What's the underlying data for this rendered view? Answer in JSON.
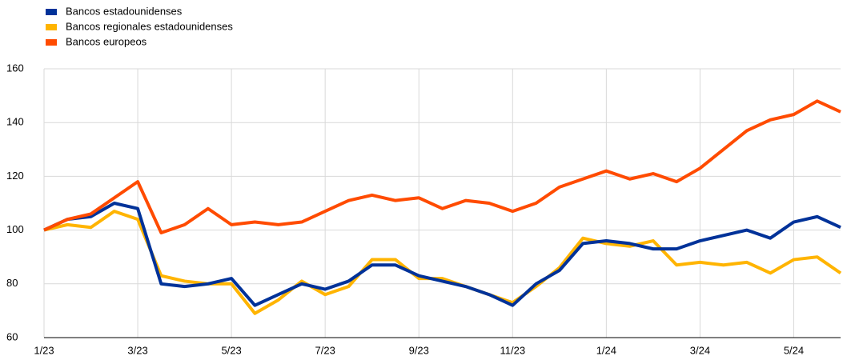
{
  "chart_data": {
    "type": "line",
    "x": [
      0,
      0.5,
      1,
      1.5,
      2,
      2.5,
      3,
      3.5,
      4,
      4.5,
      5,
      5.5,
      6,
      6.5,
      7,
      7.5,
      8,
      8.5,
      9,
      9.5,
      10,
      10.5,
      11,
      11.5,
      12,
      12.5,
      13,
      13.5,
      14,
      14.5,
      15,
      15.5,
      16,
      16.5,
      17
    ],
    "series": [
      {
        "name": "Bancos estadounidenses",
        "color": "#003299",
        "values": [
          100,
          104,
          105,
          110,
          108,
          80,
          79,
          80,
          82,
          72,
          76,
          80,
          78,
          81,
          87,
          87,
          83,
          81,
          79,
          76,
          72,
          80,
          85,
          95,
          96,
          95,
          93,
          93,
          96,
          98,
          100,
          97,
          103,
          105,
          101
        ]
      },
      {
        "name": "Bancos regionales estadounidenses",
        "color": "#ffb400",
        "values": [
          100,
          102,
          101,
          107,
          104,
          83,
          81,
          80,
          80,
          69,
          74,
          81,
          76,
          79,
          89,
          89,
          82,
          82,
          79,
          76,
          73,
          79,
          86,
          97,
          95,
          94,
          96,
          87,
          88,
          87,
          88,
          84,
          89,
          90,
          84
        ]
      },
      {
        "name": "Bancos europeos",
        "color": "#ff4b00",
        "values": [
          100,
          104,
          106,
          112,
          118,
          99,
          102,
          108,
          102,
          103,
          102,
          103,
          107,
          111,
          113,
          111,
          112,
          108,
          111,
          110,
          107,
          110,
          116,
          119,
          122,
          119,
          121,
          118,
          123,
          130,
          137,
          141,
          143,
          148,
          144
        ]
      }
    ],
    "xlim": [
      0,
      17
    ],
    "xticks": [
      {
        "value": 0,
        "label": "1/23"
      },
      {
        "value": 2,
        "label": "3/23"
      },
      {
        "value": 4,
        "label": "5/23"
      },
      {
        "value": 6,
        "label": "7/23"
      },
      {
        "value": 8,
        "label": "9/23"
      },
      {
        "value": 10,
        "label": "11/23"
      },
      {
        "value": 12,
        "label": "1/24"
      },
      {
        "value": 14,
        "label": "3/24"
      },
      {
        "value": 16,
        "label": "5/24"
      }
    ],
    "ylim": [
      60,
      160
    ],
    "yticks": [
      60,
      80,
      100,
      120,
      140,
      160
    ],
    "grid": true
  }
}
